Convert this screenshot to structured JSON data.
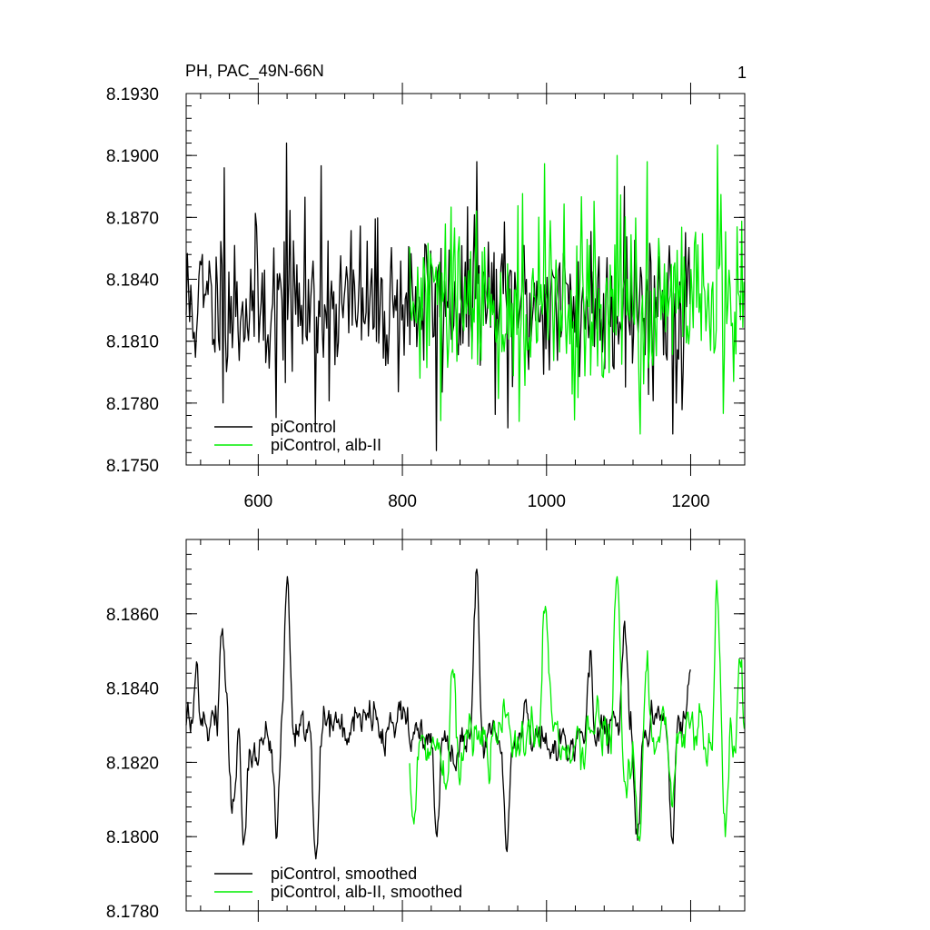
{
  "chart_data": [
    {
      "type": "line",
      "title": "PH, PAC_49N-66N",
      "panel_label": "1",
      "xlim": [
        500,
        1275
      ],
      "ylim": [
        8.175,
        8.193
      ],
      "xticks": [
        600,
        800,
        1000,
        1200
      ],
      "yticks": [
        "8.1750",
        "8.1780",
        "8.1810",
        "8.1840",
        "8.1870",
        "8.1900",
        "8.1930"
      ],
      "legend_position": "bottom-left",
      "series": [
        {
          "name": "piControl",
          "color": "#000000",
          "x_start": 500,
          "x_end": 1200,
          "mean": 8.1828,
          "std": 0.0019,
          "seed": 11,
          "peaks": [
            [
              553,
              8.1894
            ],
            [
              625,
              8.1773
            ],
            [
              640,
              8.1906
            ],
            [
              680,
              8.177
            ],
            [
              687,
              8.1895
            ],
            [
              848,
              8.1757
            ],
            [
              903,
              8.1897
            ],
            [
              947,
              8.1768
            ],
            [
              1108,
              8.1885
            ],
            [
              1175,
              8.1765
            ],
            [
              1180,
              8.178
            ]
          ]
        },
        {
          "name": "piControl, alb-II",
          "color": "#00ee00",
          "x_start": 810,
          "x_end": 1275,
          "mean": 8.1826,
          "std": 0.0021,
          "seed": 29,
          "peaks": [
            [
              868,
              8.1875
            ],
            [
              998,
              8.1896
            ],
            [
              1048,
              8.188
            ],
            [
              1098,
              8.19
            ],
            [
              1130,
              8.1765
            ],
            [
              1140,
              8.1897
            ],
            [
              1237,
              8.1905
            ],
            [
              1245,
              8.1775
            ]
          ]
        }
      ]
    },
    {
      "type": "line",
      "xlim": [
        500,
        1275
      ],
      "ylim": [
        8.178,
        8.188
      ],
      "xticks": [
        600,
        800,
        1000,
        1200
      ],
      "yticks": [
        "8.1780",
        "8.1800",
        "8.1820",
        "8.1840",
        "8.1860"
      ],
      "legend_position": "bottom-left",
      "series": [
        {
          "name": "piControl, smoothed",
          "color": "#000000",
          "x_start": 500,
          "x_end": 1200,
          "mean": 8.1828,
          "std": 0.00085,
          "seed": 7,
          "peaks": [
            [
              500,
              8.183
            ],
            [
              513,
              8.1844
            ],
            [
              550,
              8.1856
            ],
            [
              565,
              8.181
            ],
            [
              580,
              8.1799
            ],
            [
              626,
              8.18
            ],
            [
              640,
              8.187
            ],
            [
              680,
              8.1794
            ],
            [
              848,
              8.18
            ],
            [
              903,
              8.1872
            ],
            [
              945,
              8.1796
            ],
            [
              1060,
              8.185
            ],
            [
              1108,
              8.1858
            ],
            [
              1125,
              8.1802
            ],
            [
              1175,
              8.1799
            ],
            [
              1200,
              8.1845
            ]
          ]
        },
        {
          "name": "piControl, alb-II, smoothed",
          "color": "#00ee00",
          "x_start": 810,
          "x_end": 1275,
          "mean": 8.1826,
          "std": 0.0011,
          "seed": 41,
          "peaks": [
            [
              815,
              8.1805
            ],
            [
              870,
              8.1845
            ],
            [
              998,
              8.1862
            ],
            [
              1098,
              8.187
            ],
            [
              1128,
              8.18
            ],
            [
              1140,
              8.185
            ],
            [
              1175,
              8.1808
            ],
            [
              1237,
              8.1865
            ],
            [
              1248,
              8.18
            ],
            [
              1268,
              8.1847
            ],
            [
              1275,
              8.1829
            ]
          ]
        }
      ]
    }
  ]
}
